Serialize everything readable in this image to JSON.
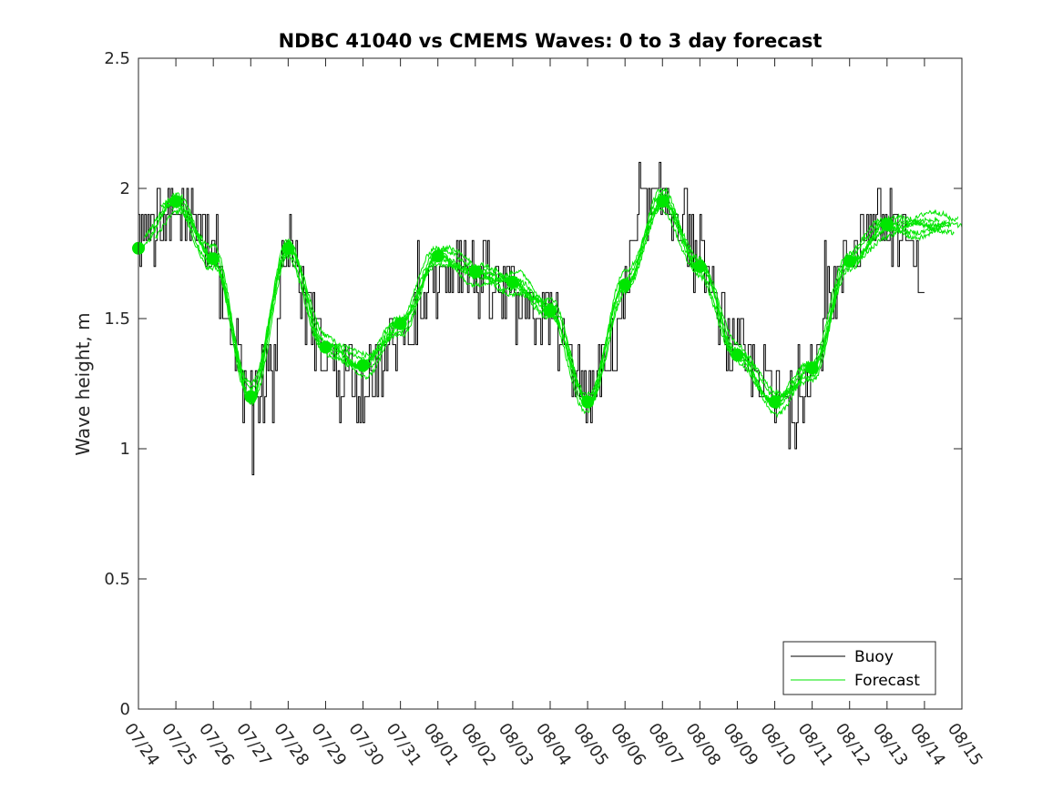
{
  "chart_data": {
    "type": "line",
    "title": "NDBC 41040 vs CMEMS Waves: 0 to 3 day forecast",
    "xlabel": "",
    "ylabel": "Wave height, m",
    "x_ticks": [
      "07/24",
      "07/25",
      "07/26",
      "07/27",
      "07/28",
      "07/29",
      "07/30",
      "07/31",
      "08/01",
      "08/02",
      "08/03",
      "08/04",
      "08/05",
      "08/06",
      "08/07",
      "08/08",
      "08/09",
      "08/10",
      "08/11",
      "08/12",
      "08/13",
      "08/14",
      "08/15"
    ],
    "y_ticks": [
      "0",
      "0.5",
      "1",
      "1.5",
      "2",
      "2.5"
    ],
    "ylim": [
      0,
      2.5
    ],
    "xlim": [
      "07/24",
      "08/15"
    ],
    "grid": false,
    "legend_position": "bottom-right",
    "colors": {
      "buoy": "#000000",
      "forecast": "#00e600"
    },
    "series": [
      {
        "name": "Buoy",
        "color": "#000000",
        "x": [
          "07/24",
          "07/24 12h",
          "07/25",
          "07/25 12h",
          "07/26",
          "07/26 12h",
          "07/27",
          "07/27 12h",
          "07/28",
          "07/28 12h",
          "07/29",
          "07/29 12h",
          "07/30",
          "07/30 12h",
          "07/31",
          "07/31 12h",
          "08/01",
          "08/01 12h",
          "08/02",
          "08/02 12h",
          "08/03",
          "08/03 12h",
          "08/04",
          "08/04 12h",
          "08/05",
          "08/05 12h",
          "08/06",
          "08/06 12h",
          "08/07",
          "08/07 12h",
          "08/08",
          "08/08 12h",
          "08/09",
          "08/09 12h",
          "08/10",
          "08/10 12h",
          "08/11",
          "08/11 12h",
          "08/12",
          "08/12 12h",
          "08/13",
          "08/13 12h",
          "08/14"
        ],
        "values": [
          1.8,
          1.85,
          1.9,
          1.9,
          1.75,
          1.45,
          1.15,
          1.3,
          1.8,
          1.55,
          1.35,
          1.3,
          1.25,
          1.3,
          1.45,
          1.55,
          1.65,
          1.75,
          1.65,
          1.6,
          1.55,
          1.5,
          1.5,
          1.35,
          1.2,
          1.3,
          1.6,
          1.9,
          1.95,
          1.9,
          1.7,
          1.5,
          1.35,
          1.3,
          1.2,
          1.15,
          1.3,
          1.6,
          1.75,
          1.85,
          1.85,
          1.8,
          1.65
        ]
      },
      {
        "name": "Forecast",
        "color": "#00e600",
        "x": [
          "07/24",
          "07/25",
          "07/26",
          "07/27",
          "07/28",
          "07/29",
          "07/30",
          "07/31",
          "08/01",
          "08/02",
          "08/03",
          "08/04",
          "08/05",
          "08/06",
          "08/07",
          "08/08",
          "08/09",
          "08/10",
          "08/11",
          "08/12",
          "08/13"
        ],
        "values": [
          1.77,
          1.95,
          1.73,
          1.2,
          1.77,
          1.39,
          1.32,
          1.48,
          1.74,
          1.68,
          1.64,
          1.53,
          1.18,
          1.63,
          1.95,
          1.7,
          1.36,
          1.18,
          1.31,
          1.72,
          1.86
        ]
      }
    ]
  }
}
